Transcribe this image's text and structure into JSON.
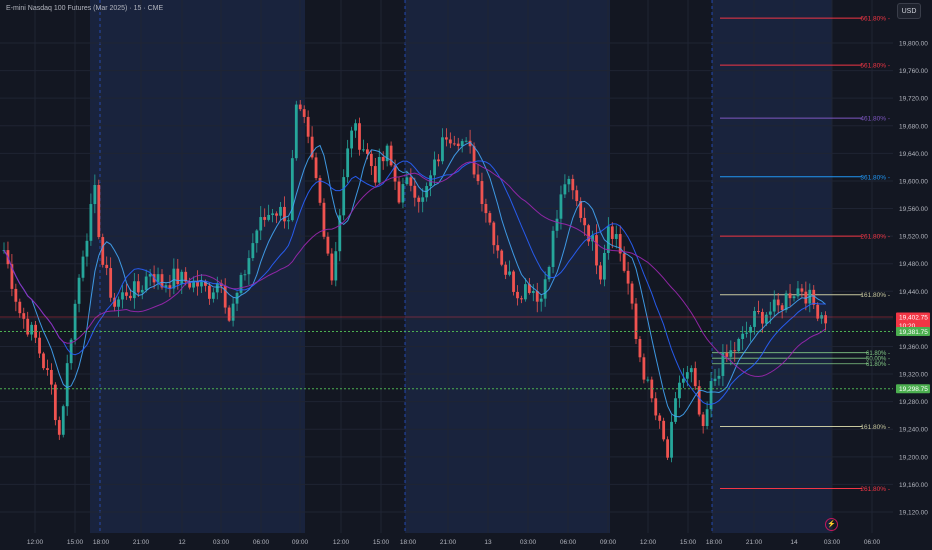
{
  "header": {
    "title": "E-mini Nasdaq 100 Futures (Mar 2025) · 15 · CME",
    "currency": "USD"
  },
  "icons": {
    "lightning": "lightning-icon"
  },
  "colors": {
    "background": "#131722",
    "session_band": "#19233d",
    "up": "#26a69a",
    "down": "#ef5350",
    "bid_line": "#4caf50",
    "price_tag": "#f23645",
    "ma_blue": "#2962ff",
    "ma_light_blue": "#42a5f5",
    "ma_purple": "#9c27b0"
  },
  "chart_data": {
    "type": "candlestick",
    "symbol": "E-mini Nasdaq 100 Futures (Mar 2025)",
    "interval": "15",
    "exchange": "CME",
    "y_axis": {
      "range": [
        19100,
        19840
      ],
      "ticks": [
        "19,800.00",
        "19,760.00",
        "19,720.00",
        "19,680.00",
        "19,640.00",
        "19,600.00",
        "19,560.00",
        "19,520.00",
        "19,480.00",
        "19,440.00",
        "19,400.00",
        "19,360.00",
        "19,320.00",
        "19,280.00",
        "19,240.00",
        "19,200.00",
        "19,160.00",
        "19,120.00"
      ],
      "tick_values": [
        19800,
        19760,
        19720,
        19680,
        19640,
        19600,
        19560,
        19520,
        19480,
        19440,
        19400,
        19360,
        19320,
        19280,
        19240,
        19200,
        19160,
        19120
      ]
    },
    "x_axis": {
      "ticks": [
        "12:00",
        "15:00",
        "18:00",
        "21:00",
        "12",
        "03:00",
        "06:00",
        "09:00",
        "12:00",
        "15:00",
        "18:00",
        "21:00",
        "13",
        "03:00",
        "06:00",
        "09:00",
        "12:00",
        "15:00",
        "18:00",
        "21:00",
        "14",
        "03:00",
        "06:00"
      ]
    },
    "price_labels": [
      {
        "text": "19,402.75",
        "sub": "10:20",
        "value": 19402.75,
        "color": "#f23645"
      },
      {
        "text": "19,381.75",
        "value": 19381.75,
        "color": "#4caf50"
      },
      {
        "text": "19,298.75",
        "value": 19298.75,
        "color": "#4caf50"
      }
    ],
    "fib_levels": [
      {
        "label": "661.80%",
        "value": 19836,
        "color": "#f23645"
      },
      {
        "label": "561.80%",
        "value": 19768,
        "color": "#f23645"
      },
      {
        "label": "461.80%",
        "value": 19691,
        "color": "#7e57c2"
      },
      {
        "label": "361.80%",
        "value": 19606,
        "color": "#2196f3"
      },
      {
        "label": "261.80%",
        "value": 19520,
        "color": "#f23645"
      },
      {
        "label": "161.80%",
        "value": 19435,
        "color": "#c9c9a0"
      }
    ],
    "retracements": [
      {
        "label": "61.80%",
        "value": 19351,
        "color": "#81c784"
      },
      {
        "label": "50.00%",
        "value": 19343,
        "color": "#81c784"
      },
      {
        "label": "61.80%",
        "value": 19335,
        "color": "#81c784"
      }
    ],
    "lower_fib_levels": [
      {
        "label": "161.80%",
        "value": 19244,
        "color": "#c9c9a0"
      },
      {
        "label": "261.80%",
        "value": 19154,
        "color": "#f23645"
      }
    ],
    "close_series_anchors": [
      [
        0,
        19500
      ],
      [
        4,
        19410
      ],
      [
        8,
        19370
      ],
      [
        12,
        19300
      ],
      [
        14,
        19232
      ],
      [
        17,
        19380
      ],
      [
        20,
        19500
      ],
      [
        23,
        19580
      ],
      [
        25,
        19480
      ],
      [
        28,
        19420
      ],
      [
        31,
        19440
      ],
      [
        34,
        19440
      ],
      [
        37,
        19470
      ],
      [
        40,
        19450
      ],
      [
        43,
        19460
      ],
      [
        46,
        19455
      ],
      [
        49,
        19450
      ],
      [
        52,
        19440
      ],
      [
        55,
        19460
      ],
      [
        57,
        19400
      ],
      [
        60,
        19450
      ],
      [
        64,
        19530
      ],
      [
        68,
        19560
      ],
      [
        72,
        19550
      ],
      [
        74,
        19700
      ],
      [
        76,
        19680
      ],
      [
        79,
        19600
      ],
      [
        82,
        19500
      ],
      [
        83,
        19460
      ],
      [
        86,
        19600
      ],
      [
        88,
        19680
      ],
      [
        91,
        19650
      ],
      [
        94,
        19610
      ],
      [
        97,
        19640
      ],
      [
        100,
        19580
      ],
      [
        103,
        19600
      ],
      [
        106,
        19570
      ],
      [
        109,
        19620
      ],
      [
        112,
        19670
      ],
      [
        115,
        19665
      ],
      [
        118,
        19640
      ],
      [
        121,
        19580
      ],
      [
        124,
        19520
      ],
      [
        127,
        19470
      ],
      [
        130,
        19440
      ],
      [
        133,
        19450
      ],
      [
        136,
        19430
      ],
      [
        139,
        19520
      ],
      [
        142,
        19600
      ],
      [
        144,
        19580
      ],
      [
        147,
        19540
      ],
      [
        149,
        19510
      ],
      [
        151,
        19470
      ],
      [
        153,
        19540
      ],
      [
        155,
        19520
      ],
      [
        158,
        19450
      ],
      [
        160,
        19370
      ],
      [
        163,
        19300
      ],
      [
        166,
        19240
      ],
      [
        168,
        19200
      ],
      [
        171,
        19310
      ],
      [
        174,
        19320
      ],
      [
        177,
        19230
      ],
      [
        179,
        19300
      ],
      [
        181,
        19330
      ],
      [
        184,
        19350
      ],
      [
        187,
        19370
      ],
      [
        190,
        19400
      ],
      [
        193,
        19410
      ],
      [
        196,
        19415
      ],
      [
        199,
        19440
      ],
      [
        202,
        19445
      ],
      [
        205,
        19420
      ],
      [
        208,
        19403
      ]
    ],
    "grid": true,
    "session_bands": "alternating darker overnight / blue day sessions"
  }
}
